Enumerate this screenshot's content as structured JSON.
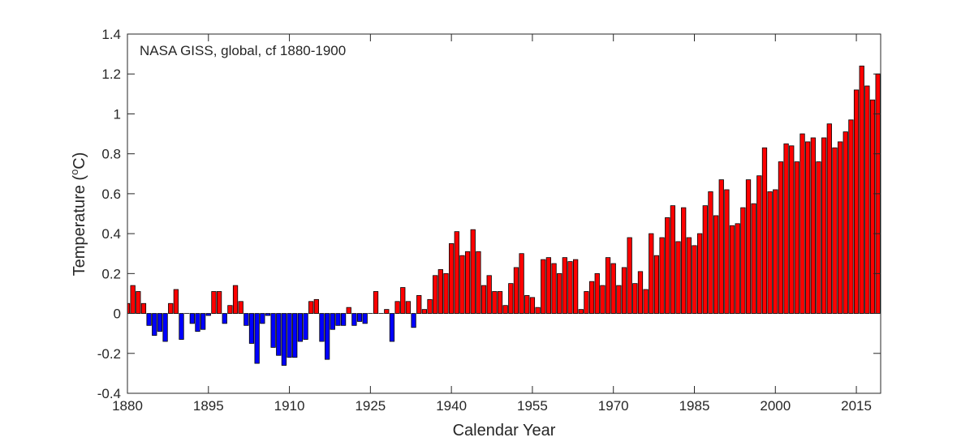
{
  "chart_data": {
    "type": "bar",
    "annotation": "NASA GISS, global, cf 1880-1900",
    "xlabel": "Calendar Year",
    "ylabel": "Temperature (",
    "ylabel_sup": "o",
    "ylabel_unit": "C)",
    "xlim": [
      1880,
      2019.5
    ],
    "ylim": [
      -0.4,
      1.4
    ],
    "xticks": [
      1880,
      1895,
      1910,
      1925,
      1940,
      1955,
      1970,
      1985,
      2000,
      2015
    ],
    "yticks": [
      -0.4,
      -0.2,
      0,
      0.2,
      0.4,
      0.6,
      0.8,
      1,
      1.2,
      1.4
    ],
    "ytick_labels": [
      "-0.4",
      "-0.2",
      "0",
      "0.2",
      "0.4",
      "0.6",
      "0.8",
      "1",
      "1.2",
      "1.4"
    ],
    "grid": false,
    "colors": {
      "positive": "#ff0000",
      "negative": "#0000ff",
      "edge": "#000000"
    },
    "x_start": 1880,
    "values": [
      0.05,
      0.14,
      0.11,
      0.05,
      -0.06,
      -0.11,
      -0.09,
      -0.14,
      0.05,
      0.12,
      -0.13,
      0.0,
      -0.05,
      -0.09,
      -0.08,
      -0.01,
      0.11,
      0.11,
      -0.05,
      0.04,
      0.14,
      0.06,
      -0.06,
      -0.15,
      -0.25,
      -0.05,
      -0.01,
      -0.17,
      -0.21,
      -0.26,
      -0.22,
      -0.22,
      -0.14,
      -0.13,
      0.06,
      0.07,
      -0.14,
      -0.23,
      -0.08,
      -0.06,
      -0.06,
      0.03,
      -0.06,
      -0.04,
      -0.05,
      0.0,
      0.11,
      0.0,
      0.02,
      -0.14,
      0.06,
      0.13,
      0.06,
      -0.07,
      0.09,
      0.02,
      0.07,
      0.19,
      0.22,
      0.2,
      0.35,
      0.41,
      0.29,
      0.31,
      0.42,
      0.31,
      0.14,
      0.19,
      0.11,
      0.11,
      0.04,
      0.15,
      0.23,
      0.3,
      0.09,
      0.08,
      0.03,
      0.27,
      0.28,
      0.25,
      0.2,
      0.28,
      0.26,
      0.27,
      0.02,
      0.11,
      0.16,
      0.2,
      0.14,
      0.28,
      0.25,
      0.14,
      0.23,
      0.38,
      0.15,
      0.21,
      0.12,
      0.4,
      0.29,
      0.38,
      0.48,
      0.54,
      0.36,
      0.53,
      0.38,
      0.34,
      0.4,
      0.54,
      0.61,
      0.49,
      0.67,
      0.62,
      0.44,
      0.45,
      0.53,
      0.67,
      0.55,
      0.69,
      0.83,
      0.61,
      0.62,
      0.76,
      0.85,
      0.84,
      0.76,
      0.9,
      0.86,
      0.88,
      0.76,
      0.88,
      0.95,
      0.83,
      0.86,
      0.91,
      0.97,
      1.12,
      1.24,
      1.14,
      1.07,
      1.2
    ]
  }
}
